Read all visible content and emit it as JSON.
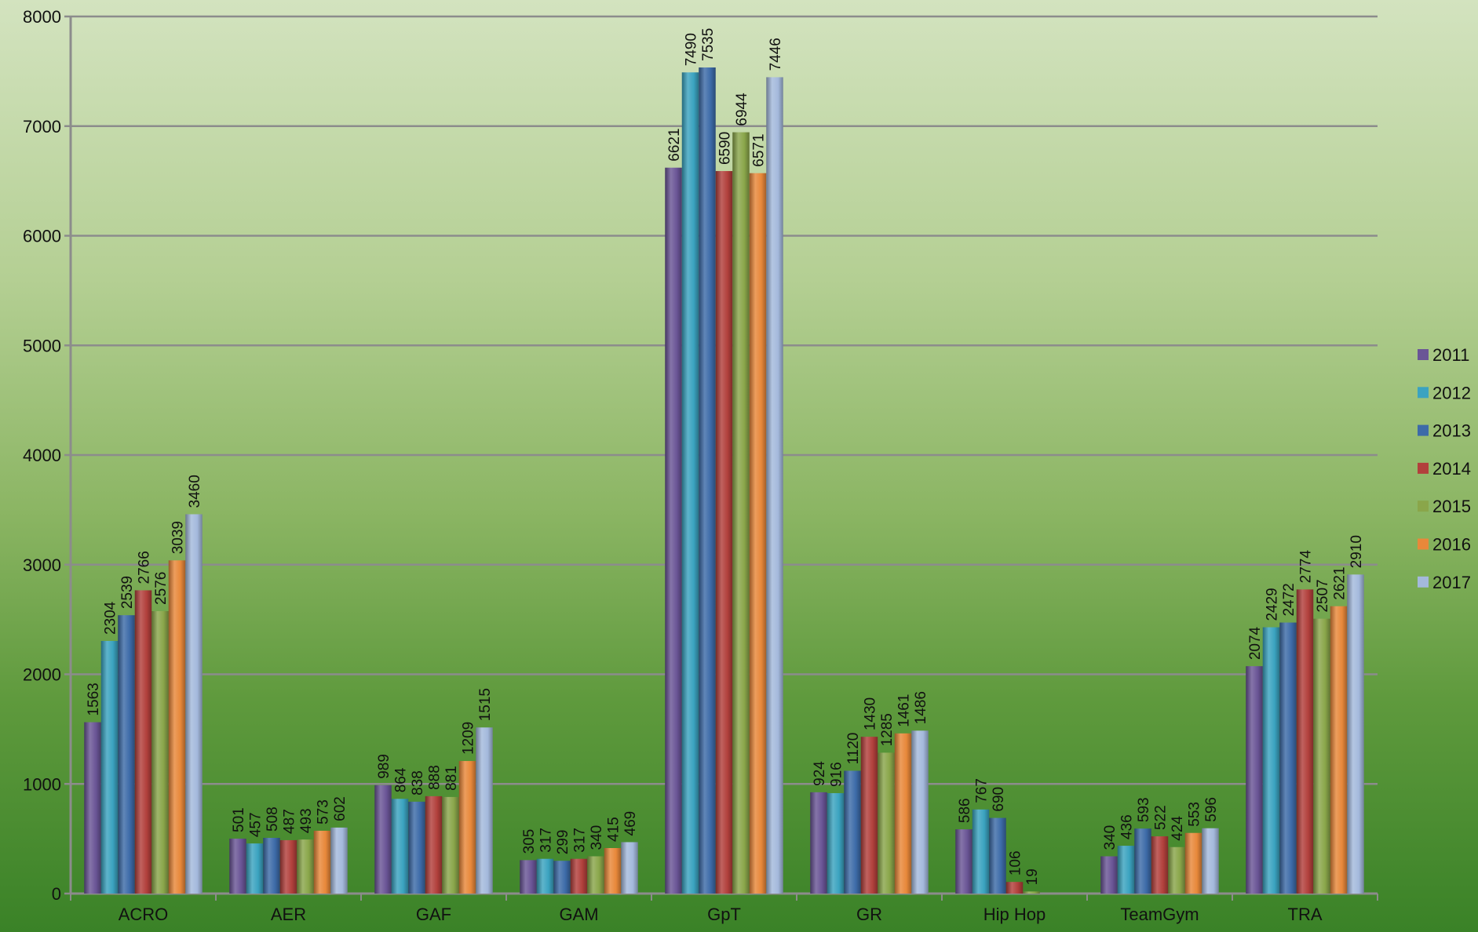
{
  "chart_data": {
    "type": "bar",
    "title": "",
    "xlabel": "",
    "ylabel": "",
    "ylim": [
      0,
      8000
    ],
    "yticks": [
      0,
      1000,
      2000,
      3000,
      4000,
      5000,
      6000,
      7000,
      8000
    ],
    "grid": true,
    "legend_position": "right",
    "categories": [
      "ACRO",
      "AER",
      "GAF",
      "GAM",
      "GpT",
      "GR",
      "Hip Hop",
      "TeamGym",
      "TRA"
    ],
    "series": [
      {
        "name": "2011",
        "color": "#6a5596",
        "values": [
          1563,
          501,
          989,
          305,
          6621,
          924,
          586,
          340,
          2074
        ]
      },
      {
        "name": "2012",
        "color": "#3ba3c0",
        "values": [
          2304,
          457,
          864,
          317,
          7490,
          916,
          767,
          436,
          2429
        ]
      },
      {
        "name": "2013",
        "color": "#3d6ba8",
        "values": [
          2539,
          508,
          838,
          299,
          7535,
          1120,
          690,
          593,
          2472
        ]
      },
      {
        "name": "2014",
        "color": "#b2403c",
        "values": [
          2766,
          487,
          888,
          317,
          6590,
          1430,
          106,
          522,
          2774
        ]
      },
      {
        "name": "2015",
        "color": "#8aa64a",
        "values": [
          2576,
          493,
          881,
          340,
          6944,
          1285,
          19,
          424,
          2507
        ]
      },
      {
        "name": "2016",
        "color": "#e8883a",
        "values": [
          3039,
          573,
          1209,
          415,
          6571,
          1461,
          null,
          553,
          2621
        ]
      },
      {
        "name": "2017",
        "color": "#a4b9dc",
        "values": [
          3460,
          602,
          1515,
          469,
          7446,
          1486,
          null,
          596,
          2910
        ]
      }
    ]
  }
}
